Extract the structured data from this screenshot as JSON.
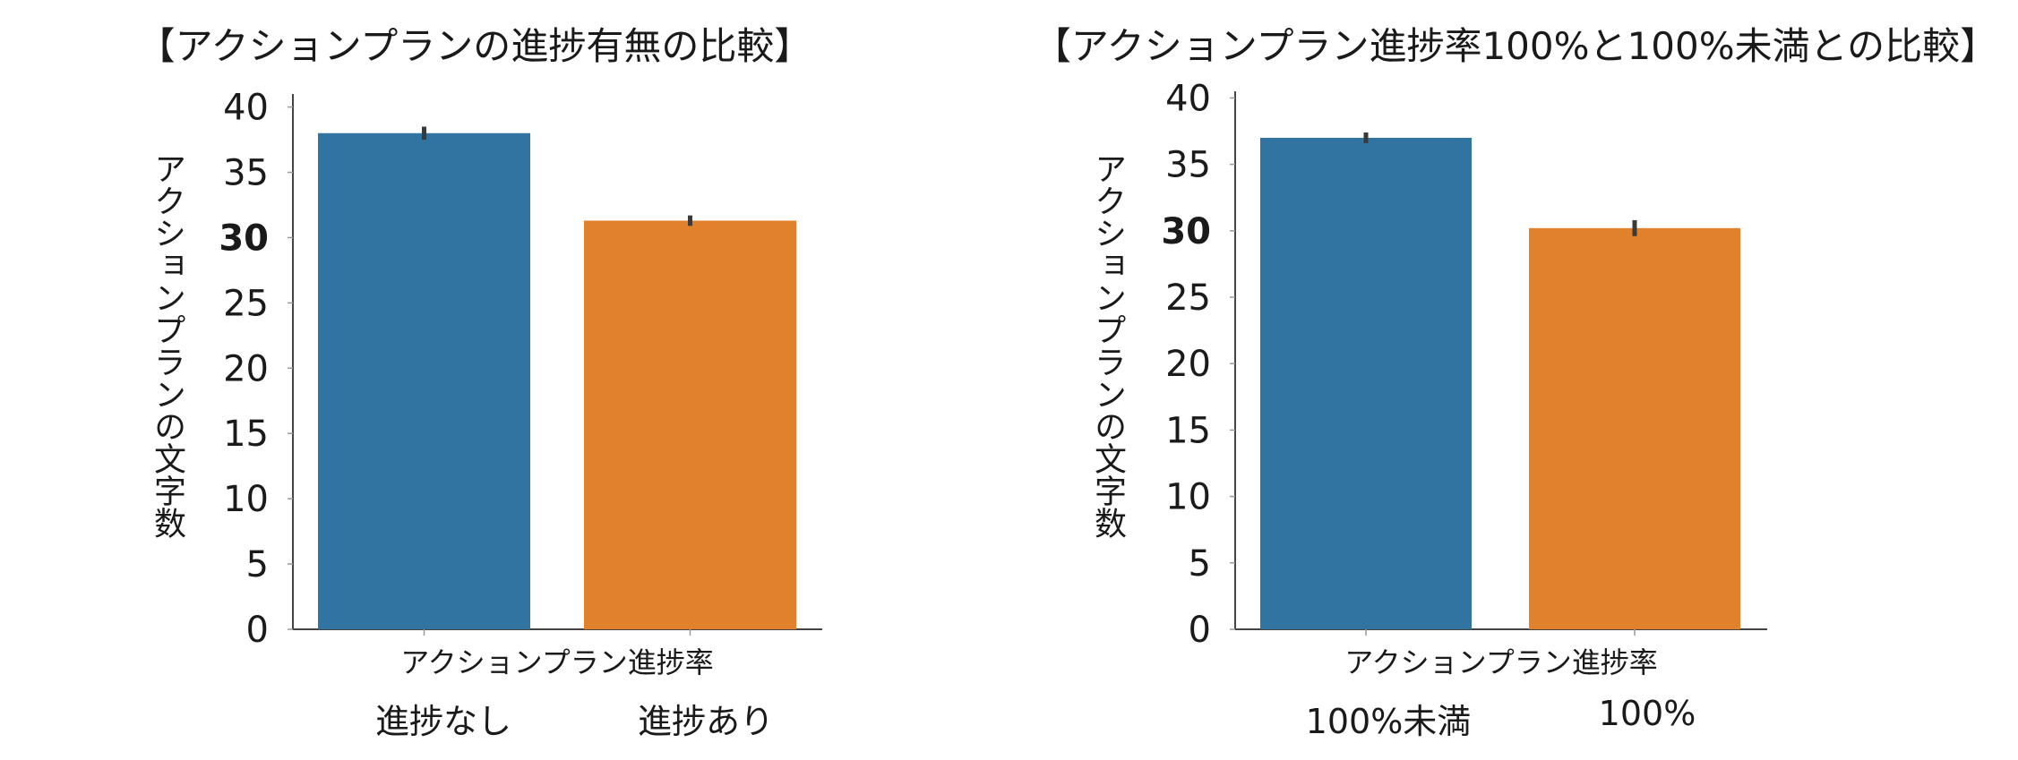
{
  "chart_data": [
    {
      "type": "bar",
      "title": "【アクションプランの進捗有無の比較】",
      "xlabel": "アクションプラン進捗率",
      "ylabel": "アクションプランの文字数",
      "categories": [
        "進捗なし",
        "進捗あり"
      ],
      "values": [
        38,
        31.3
      ],
      "error": [
        0.5,
        0.4
      ],
      "colors": [
        "#3274a1",
        "#e1812c"
      ],
      "yticks": [
        "0",
        "5",
        "10",
        "15",
        "20",
        "25",
        "30",
        "35",
        "40"
      ],
      "bold_tick": "30",
      "ylim": [
        0,
        41
      ]
    },
    {
      "type": "bar",
      "title": "【アクションプラン進捗率100%と100%未満との比較】",
      "xlabel": "アクションプラン進捗率",
      "ylabel": "アクションプランの文字数",
      "categories": [
        "100%未満",
        "100%"
      ],
      "values": [
        37,
        30.2
      ],
      "error": [
        0.4,
        0.6
      ],
      "colors": [
        "#3274a1",
        "#e1812c"
      ],
      "yticks": [
        "0",
        "5",
        "10",
        "15",
        "20",
        "25",
        "30",
        "35",
        "40"
      ],
      "bold_tick": "30",
      "ylim": [
        0,
        40.5
      ]
    }
  ]
}
